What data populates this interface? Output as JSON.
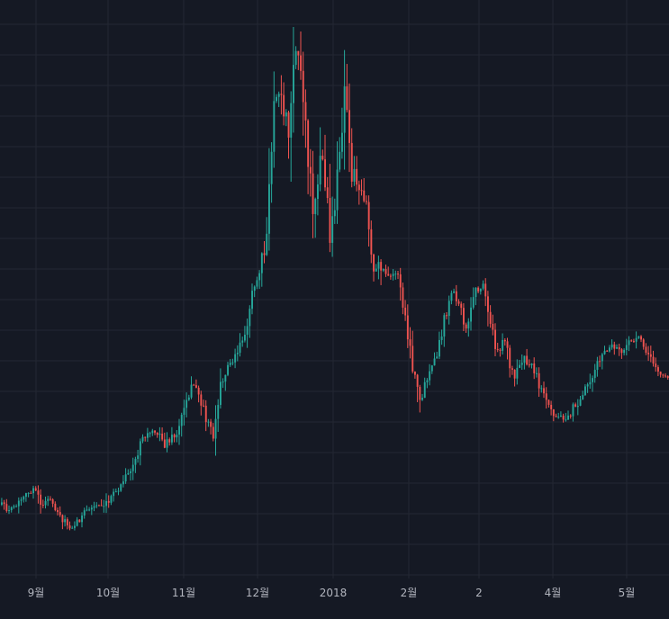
{
  "chart_data": {
    "type": "candlestick",
    "title": "",
    "xlabel": "",
    "ylabel": "",
    "grid": true,
    "colors": {
      "background": "#151924",
      "grid": "#232733",
      "up": "#26a69a",
      "down": "#ef5350",
      "tick_text": "#b2b5be"
    },
    "x_ticks": [
      {
        "label": "9월",
        "x": 40
      },
      {
        "label": "10월",
        "x": 120
      },
      {
        "label": "11월",
        "x": 204
      },
      {
        "label": "12월",
        "x": 286
      },
      {
        "label": "2018",
        "x": 370
      },
      {
        "label": "2월",
        "x": 454
      },
      {
        "label": "2",
        "x": 532
      },
      {
        "label": "4월",
        "x": 614
      },
      {
        "label": "5월",
        "x": 696
      }
    ],
    "y_range_rel": [
      0,
      1
    ],
    "price_path_rel": [
      [
        0,
        0.13
      ],
      [
        12,
        0.12
      ],
      [
        24,
        0.14
      ],
      [
        36,
        0.16
      ],
      [
        45,
        0.13
      ],
      [
        55,
        0.14
      ],
      [
        66,
        0.11
      ],
      [
        76,
        0.09
      ],
      [
        86,
        0.1
      ],
      [
        96,
        0.12
      ],
      [
        108,
        0.13
      ],
      [
        120,
        0.14
      ],
      [
        132,
        0.16
      ],
      [
        146,
        0.2
      ],
      [
        158,
        0.25
      ],
      [
        170,
        0.27
      ],
      [
        182,
        0.24
      ],
      [
        196,
        0.26
      ],
      [
        206,
        0.33
      ],
      [
        216,
        0.35
      ],
      [
        226,
        0.3
      ],
      [
        236,
        0.26
      ],
      [
        246,
        0.36
      ],
      [
        258,
        0.4
      ],
      [
        268,
        0.43
      ],
      [
        278,
        0.5
      ],
      [
        288,
        0.58
      ],
      [
        296,
        0.62
      ],
      [
        304,
        0.88
      ],
      [
        314,
        0.86
      ],
      [
        320,
        0.82
      ],
      [
        326,
        0.98
      ],
      [
        332,
        0.94
      ],
      [
        338,
        0.82
      ],
      [
        346,
        0.68
      ],
      [
        356,
        0.78
      ],
      [
        366,
        0.62
      ],
      [
        374,
        0.72
      ],
      [
        382,
        0.88
      ],
      [
        390,
        0.74
      ],
      [
        398,
        0.72
      ],
      [
        406,
        0.68
      ],
      [
        414,
        0.55
      ],
      [
        422,
        0.57
      ],
      [
        430,
        0.54
      ],
      [
        440,
        0.56
      ],
      [
        450,
        0.46
      ],
      [
        458,
        0.37
      ],
      [
        466,
        0.32
      ],
      [
        474,
        0.36
      ],
      [
        484,
        0.4
      ],
      [
        492,
        0.46
      ],
      [
        502,
        0.52
      ],
      [
        510,
        0.49
      ],
      [
        518,
        0.45
      ],
      [
        526,
        0.52
      ],
      [
        536,
        0.53
      ],
      [
        544,
        0.46
      ],
      [
        552,
        0.41
      ],
      [
        560,
        0.43
      ],
      [
        570,
        0.36
      ],
      [
        580,
        0.4
      ],
      [
        592,
        0.38
      ],
      [
        604,
        0.32
      ],
      [
        614,
        0.29
      ],
      [
        624,
        0.29
      ],
      [
        634,
        0.3
      ],
      [
        644,
        0.33
      ],
      [
        654,
        0.36
      ],
      [
        666,
        0.4
      ],
      [
        678,
        0.42
      ],
      [
        690,
        0.41
      ],
      [
        700,
        0.43
      ],
      [
        710,
        0.44
      ],
      [
        720,
        0.4
      ],
      [
        732,
        0.37
      ],
      [
        743,
        0.36
      ]
    ]
  }
}
